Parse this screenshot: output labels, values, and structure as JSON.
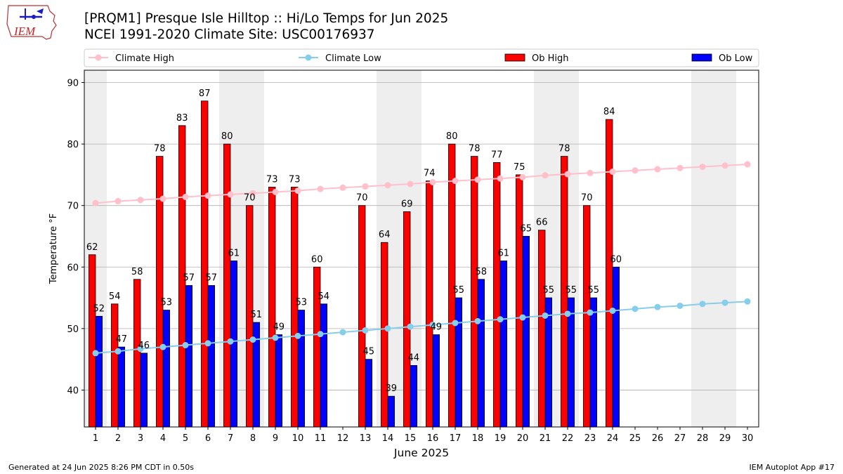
{
  "header": {
    "title_line1": "[PRQM1] Presque Isle Hilltop :: Hi/Lo Temps for Jun 2025",
    "title_line2": "NCEI 1991-2020 Climate Site: USC00176937",
    "logo_text": "IEM"
  },
  "footer": {
    "left": "Generated at 24 Jun 2025 8:26 PM CDT in 0.50s",
    "right": "IEM Autoplot App #17"
  },
  "colors": {
    "ob_high": "#ff0000",
    "ob_low": "#0000ff",
    "climate_high": "#ffc0cb",
    "climate_low": "#87ceeb",
    "weekend_shade": "#eeeeee",
    "grid": "#b0b0b0"
  },
  "chart_data": {
    "type": "bar",
    "xlabel": "June 2025",
    "ylabel": "Temperature °F",
    "ylim": [
      34,
      92
    ],
    "xlim": [
      0.5,
      30.5
    ],
    "yticks": [
      40,
      50,
      60,
      70,
      80,
      90
    ],
    "grid": "y",
    "legend_position": "top",
    "categories": [
      "1",
      "2",
      "3",
      "4",
      "5",
      "6",
      "7",
      "8",
      "9",
      "10",
      "11",
      "12",
      "13",
      "14",
      "15",
      "16",
      "17",
      "18",
      "19",
      "20",
      "21",
      "22",
      "23",
      "24",
      "25",
      "26",
      "27",
      "28",
      "29",
      "30"
    ],
    "shaded_days": [
      1,
      7,
      8,
      14,
      15,
      21,
      22,
      28,
      29
    ],
    "series": [
      {
        "name": "Climate High",
        "kind": "line",
        "values": [
          70.4,
          70.7,
          70.9,
          71.1,
          71.4,
          71.6,
          71.8,
          72.0,
          72.2,
          72.4,
          72.7,
          72.9,
          73.1,
          73.3,
          73.5,
          73.8,
          74.0,
          74.2,
          74.4,
          74.6,
          74.9,
          75.1,
          75.3,
          75.5,
          75.7,
          75.9,
          76.1,
          76.3,
          76.5,
          76.7
        ]
      },
      {
        "name": "Climate Low",
        "kind": "line",
        "values": [
          46.0,
          46.3,
          46.7,
          47.0,
          47.3,
          47.6,
          47.9,
          48.2,
          48.5,
          48.8,
          49.1,
          49.4,
          49.7,
          50.0,
          50.3,
          50.6,
          50.9,
          51.2,
          51.5,
          51.8,
          52.1,
          52.4,
          52.6,
          52.9,
          53.2,
          53.5,
          53.7,
          54.0,
          54.2,
          54.4
        ]
      },
      {
        "name": "Ob High",
        "kind": "bar",
        "values": [
          62,
          54,
          58,
          78,
          83,
          87,
          80,
          70,
          73,
          73,
          60,
          null,
          70,
          64,
          69,
          74,
          80,
          78,
          77,
          75,
          66,
          78,
          70,
          84,
          null,
          null,
          null,
          null,
          null,
          null
        ]
      },
      {
        "name": "Ob Low",
        "kind": "bar",
        "values": [
          52,
          47,
          46,
          53,
          57,
          57,
          61,
          51,
          49,
          53,
          54,
          null,
          45,
          39,
          44,
          49,
          55,
          58,
          61,
          65,
          55,
          55,
          55,
          60,
          null,
          null,
          null,
          null,
          null,
          null
        ]
      }
    ]
  }
}
